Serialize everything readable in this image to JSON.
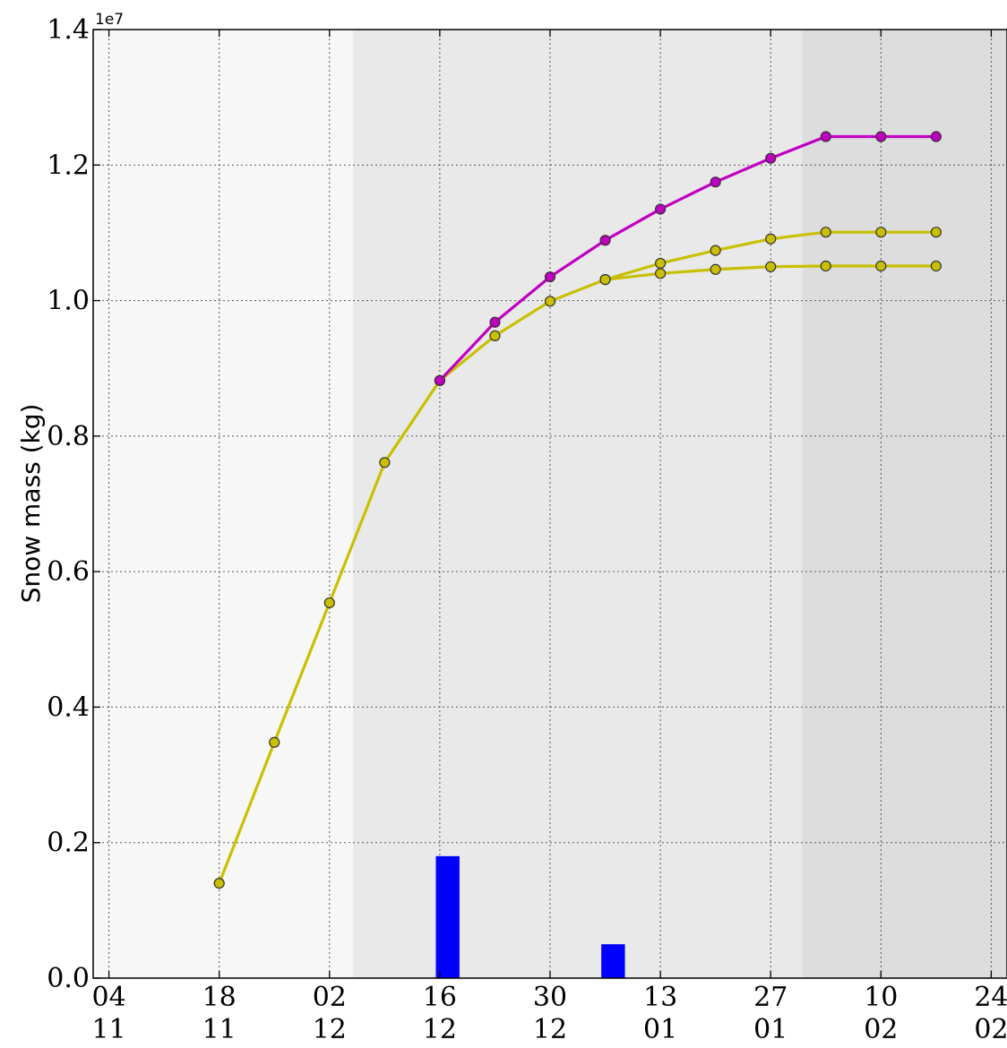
{
  "chart_data": {
    "type": "line",
    "ylabel": "Snow mass (kg)",
    "y_offset_label": "1e7",
    "ylim": [
      0,
      14000000
    ],
    "yticks": [
      0.0,
      0.2,
      0.4,
      0.6,
      0.8,
      1.0,
      1.2,
      1.4
    ],
    "ytick_labels": [
      "0.0",
      "0.2",
      "0.4",
      "0.6",
      "0.8",
      "1.0",
      "1.2",
      "1.4"
    ],
    "xlim": [
      "11-02",
      "02-26"
    ],
    "xticks": [
      "11-04",
      "11-18",
      "12-02",
      "12-16",
      "12-30",
      "01-13",
      "01-27",
      "02-10",
      "02-24"
    ],
    "xtick_labels": [
      {
        "day": "04",
        "month": "11"
      },
      {
        "day": "18",
        "month": "11"
      },
      {
        "day": "02",
        "month": "12"
      },
      {
        "day": "16",
        "month": "12"
      },
      {
        "day": "30",
        "month": "12"
      },
      {
        "day": "13",
        "month": "01"
      },
      {
        "day": "27",
        "month": "01"
      },
      {
        "day": "10",
        "month": "02"
      },
      {
        "day": "24",
        "month": "02"
      }
    ],
    "grid": true,
    "shaded_periods": [
      {
        "start": "11-02",
        "end": "12-05",
        "color": "#f7f7f7"
      },
      {
        "start": "12-05",
        "end": "01-31",
        "color": "#e9e9e9"
      },
      {
        "start": "01-31",
        "end": "02-26",
        "color": "#dddddd"
      }
    ],
    "series": [
      {
        "color": "#c000c0",
        "marker": "circle",
        "points": [
          {
            "x": "12-16",
            "y": 8820000
          },
          {
            "x": "12-23",
            "y": 9680000
          },
          {
            "x": "12-30",
            "y": 10350000
          },
          {
            "x": "01-06",
            "y": 10890000
          },
          {
            "x": "01-13",
            "y": 11350000
          },
          {
            "x": "01-20",
            "y": 11750000
          },
          {
            "x": "01-27",
            "y": 12100000
          },
          {
            "x": "02-03",
            "y": 12420000
          },
          {
            "x": "02-10",
            "y": 12420000
          },
          {
            "x": "02-17",
            "y": 12420000
          }
        ]
      },
      {
        "color": "#c8c000",
        "marker": "circle",
        "points": [
          {
            "x": "11-18",
            "y": 1400000
          },
          {
            "x": "11-25",
            "y": 3480000
          },
          {
            "x": "12-02",
            "y": 5540000
          },
          {
            "x": "12-09",
            "y": 7610000
          },
          {
            "x": "12-16",
            "y": 8820000
          },
          {
            "x": "12-23",
            "y": 9480000
          },
          {
            "x": "12-30",
            "y": 9990000
          },
          {
            "x": "01-06",
            "y": 10310000
          },
          {
            "x": "01-13",
            "y": 10550000
          },
          {
            "x": "01-20",
            "y": 10740000
          },
          {
            "x": "01-27",
            "y": 10910000
          },
          {
            "x": "02-03",
            "y": 11010000
          },
          {
            "x": "02-10",
            "y": 11010000
          },
          {
            "x": "02-17",
            "y": 11010000
          }
        ]
      },
      {
        "color": "#c8c000",
        "marker": "circle",
        "points": [
          {
            "x": "01-06",
            "y": 10310000
          },
          {
            "x": "01-13",
            "y": 10400000
          },
          {
            "x": "01-20",
            "y": 10460000
          },
          {
            "x": "01-27",
            "y": 10500000
          },
          {
            "x": "02-03",
            "y": 10510000
          },
          {
            "x": "02-10",
            "y": 10510000
          },
          {
            "x": "02-17",
            "y": 10510000
          }
        ]
      }
    ],
    "bars": {
      "color": "#0000ff",
      "width_days": 3,
      "items": [
        {
          "x": "12-17",
          "y": 1800000
        },
        {
          "x": "01-07",
          "y": 500000
        }
      ]
    }
  }
}
